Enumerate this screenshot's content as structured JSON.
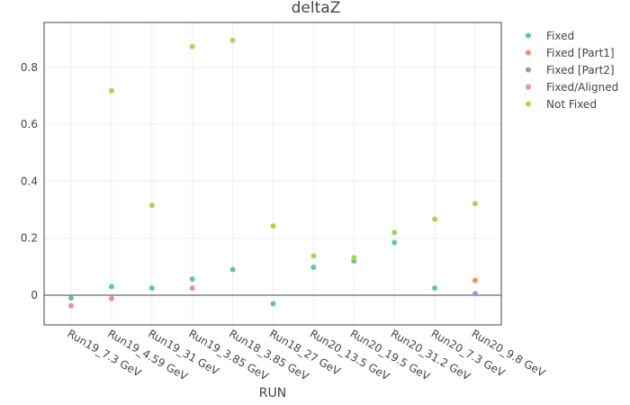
{
  "chart_data": {
    "type": "scatter",
    "title": "deltaZ",
    "xlabel": "RUN",
    "ylabel": "",
    "categories": [
      "Run19_7.3 GeV",
      "Run19_4.59 GeV",
      "Run19_31 GeV",
      "Run19_3.85 GeV",
      "Run18_3.85 GeV",
      "Run18_27 GeV",
      "Run20_13.5 GeV",
      "Run20_19.5 GeV",
      "Run20_31.2 GeV",
      "Run20_7.3 GeV",
      "Run20_9.8 GeV"
    ],
    "yticks": [
      0,
      0.2,
      0.4,
      0.6,
      0.8
    ],
    "ylim": [
      -0.1,
      0.95
    ],
    "grid": true,
    "legend_position": "top-right",
    "series": [
      {
        "name": "Fixed",
        "color": "#66c2a5",
        "points": [
          [
            "Run19_7.3 GeV",
            -0.01
          ],
          [
            "Run19_4.59 GeV",
            0.03
          ],
          [
            "Run19_31 GeV",
            0.025
          ],
          [
            "Run19_3.85 GeV",
            0.057
          ],
          [
            "Run18_3.85 GeV",
            0.09
          ],
          [
            "Run18_27 GeV",
            -0.03
          ],
          [
            "Run20_13.5 GeV",
            0.098
          ],
          [
            "Run20_19.5 GeV",
            0.12
          ],
          [
            "Run20_31.2 GeV",
            0.185
          ],
          [
            "Run20_7.3 GeV",
            0.025
          ]
        ]
      },
      {
        "name": "Fixed [Part1]",
        "color": "#fc8d62",
        "points": [
          [
            "Run20_9.8 GeV",
            0.052
          ]
        ]
      },
      {
        "name": "Fixed [Part2]",
        "color": "#8da0cb",
        "points": [
          [
            "Run20_9.8 GeV",
            0.005
          ]
        ]
      },
      {
        "name": "Fixed/Aligned",
        "color": "#e78ac3",
        "points": [
          [
            "Run19_7.3 GeV",
            -0.037
          ],
          [
            "Run19_4.59 GeV",
            -0.012
          ],
          [
            "Run19_3.85 GeV",
            0.025
          ]
        ]
      },
      {
        "name": "Not Fixed",
        "color": "#a6d854",
        "points": [
          [
            "Run19_4.59 GeV",
            0.718
          ],
          [
            "Run19_31 GeV",
            0.315
          ],
          [
            "Run19_3.85 GeV",
            0.873
          ],
          [
            "Run18_3.85 GeV",
            0.895
          ],
          [
            "Run18_27 GeV",
            0.243
          ],
          [
            "Run20_13.5 GeV",
            0.138
          ],
          [
            "Run20_19.5 GeV",
            0.132
          ],
          [
            "Run20_31.2 GeV",
            0.22
          ],
          [
            "Run20_7.3 GeV",
            0.267
          ],
          [
            "Run20_9.8 GeV",
            0.322
          ]
        ]
      }
    ]
  }
}
